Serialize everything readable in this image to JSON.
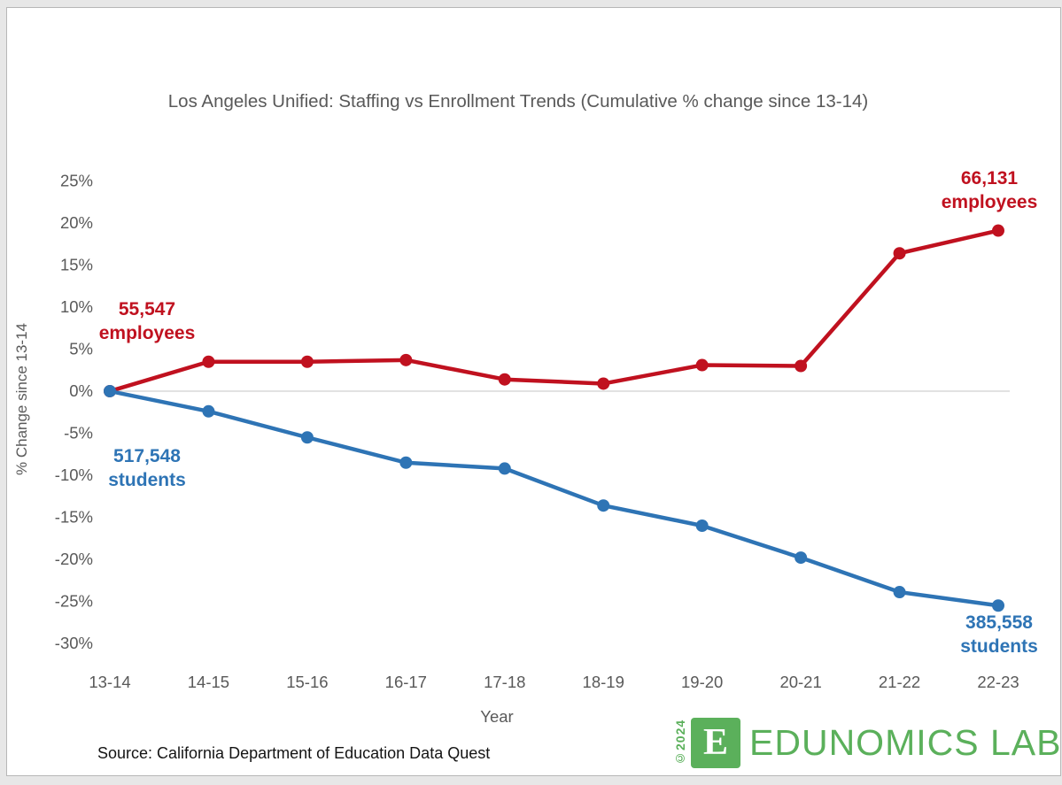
{
  "page": {
    "source_note": "Source: California Department of Education Data Quest"
  },
  "logo": {
    "copyright": "©2024",
    "mark_letter": "E",
    "brand": "EDUNOMICS LAB",
    "green": "#5bb05b"
  },
  "chart_data": {
    "type": "line",
    "title": "Los Angeles Unified: Staffing vs Enrollment Trends (Cumulative % change since 13-14)",
    "xlabel": "Year",
    "ylabel": "% Change since 13-14",
    "categories": [
      "13-14",
      "14-15",
      "15-16",
      "16-17",
      "17-18",
      "18-19",
      "19-20",
      "20-21",
      "21-22",
      "22-23"
    ],
    "ytick_labels": [
      "25%",
      "20%",
      "15%",
      "10%",
      "5%",
      "0%",
      "-5%",
      "-10%",
      "-15%",
      "-20%",
      "-25%",
      "-30%"
    ],
    "ytick_values": [
      25,
      20,
      15,
      10,
      5,
      0,
      -5,
      -10,
      -15,
      -20,
      -25,
      -30
    ],
    "ylim": [
      -30,
      25
    ],
    "grid": "zero-line-only",
    "legend": "none",
    "axis_text_color": "#595959",
    "zero_line_color": "#d9d9d9",
    "series": [
      {
        "name": "employees",
        "color": "#c0111f",
        "values": [
          0,
          3.5,
          3.5,
          3.7,
          1.4,
          0.9,
          3.1,
          3.0,
          16.4,
          19.1
        ]
      },
      {
        "name": "students",
        "color": "#2e74b5",
        "values": [
          0,
          -2.4,
          -5.5,
          -8.5,
          -9.2,
          -13.6,
          -16.0,
          -19.8,
          -23.9,
          -25.5
        ]
      }
    ],
    "annotations": {
      "employees_start": {
        "value": "55,547",
        "label": "employees",
        "color": "#c0111f"
      },
      "employees_end": {
        "value": "66,131",
        "label": "employees",
        "color": "#c0111f"
      },
      "students_start": {
        "value": "517,548",
        "label": "students",
        "color": "#2e74b5"
      },
      "students_end": {
        "value": "385,558",
        "label": "students",
        "color": "#2e74b5"
      }
    }
  }
}
